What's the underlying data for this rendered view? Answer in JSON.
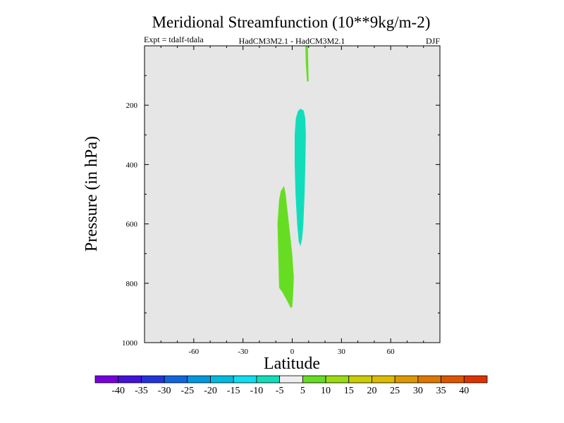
{
  "chart_data": {
    "type": "heatmap",
    "title": "Meridional Streamfunction (10**9kg/m-2)",
    "subtitle_left": "Expt = tdalf-tdala",
    "subtitle_center": "HadCM3M2.1 - HadCM3M2.1",
    "subtitle_right": "DJF",
    "xlabel": "Latitude",
    "ylabel": "Pressure (in hPa)",
    "xlim": [
      -90,
      90
    ],
    "ylim": [
      1000,
      0
    ],
    "x_ticks": [
      -60,
      -30,
      0,
      30,
      60
    ],
    "y_ticks": [
      200,
      400,
      600,
      800,
      1000
    ],
    "background_color": "#e6e6e6",
    "regions": [
      {
        "name": "positive-lobe-upper",
        "value_range": [
          5,
          10
        ],
        "color": "#66dd22",
        "outline": [
          [
            8,
            0
          ],
          [
            9.5,
            0
          ],
          [
            10,
            120
          ],
          [
            9,
            120
          ],
          [
            8.3,
            60
          ]
        ]
      },
      {
        "name": "negative-lobe-mid",
        "value_range": [
          -10,
          -5
        ],
        "color": "#11ddbb",
        "outline": [
          [
            5,
            212
          ],
          [
            7,
            218
          ],
          [
            8,
            245
          ],
          [
            8.3,
            300
          ],
          [
            8,
            400
          ],
          [
            7.5,
            500
          ],
          [
            6.8,
            600
          ],
          [
            6,
            650
          ],
          [
            5,
            675
          ],
          [
            4,
            660
          ],
          [
            3,
            600
          ],
          [
            2,
            500
          ],
          [
            1.5,
            400
          ],
          [
            1.5,
            300
          ],
          [
            2.2,
            245
          ],
          [
            3.5,
            220
          ]
        ]
      },
      {
        "name": "positive-lobe-lower",
        "value_range": [
          5,
          10
        ],
        "color": "#66dd22",
        "outline": [
          [
            -5,
            472
          ],
          [
            -4,
            500
          ],
          [
            -2,
            600
          ],
          [
            0,
            700
          ],
          [
            1,
            780
          ],
          [
            0.5,
            840
          ],
          [
            0,
            880
          ],
          [
            -1,
            883
          ],
          [
            -3,
            860
          ],
          [
            -6,
            830
          ],
          [
            -8,
            815
          ],
          [
            -8.5,
            700
          ],
          [
            -9,
            600
          ],
          [
            -8,
            520
          ],
          [
            -7,
            490
          ]
        ]
      }
    ],
    "colorbar": {
      "labels": [
        "-40",
        "-35",
        "-30",
        "-25",
        "-20",
        "-15",
        "-10",
        "-5",
        "5",
        "10",
        "15",
        "20",
        "25",
        "30",
        "35",
        "40"
      ],
      "colors": [
        "#7700dd",
        "#4411dd",
        "#2233dd",
        "#1166dd",
        "#0099dd",
        "#00bbdd",
        "#11ddee",
        "#11ddbb",
        "#eeeeee",
        "#66dd22",
        "#99dd11",
        "#cccc00",
        "#ddbb00",
        "#dd9900",
        "#dd7700",
        "#dd5500",
        "#dd3300"
      ]
    }
  }
}
